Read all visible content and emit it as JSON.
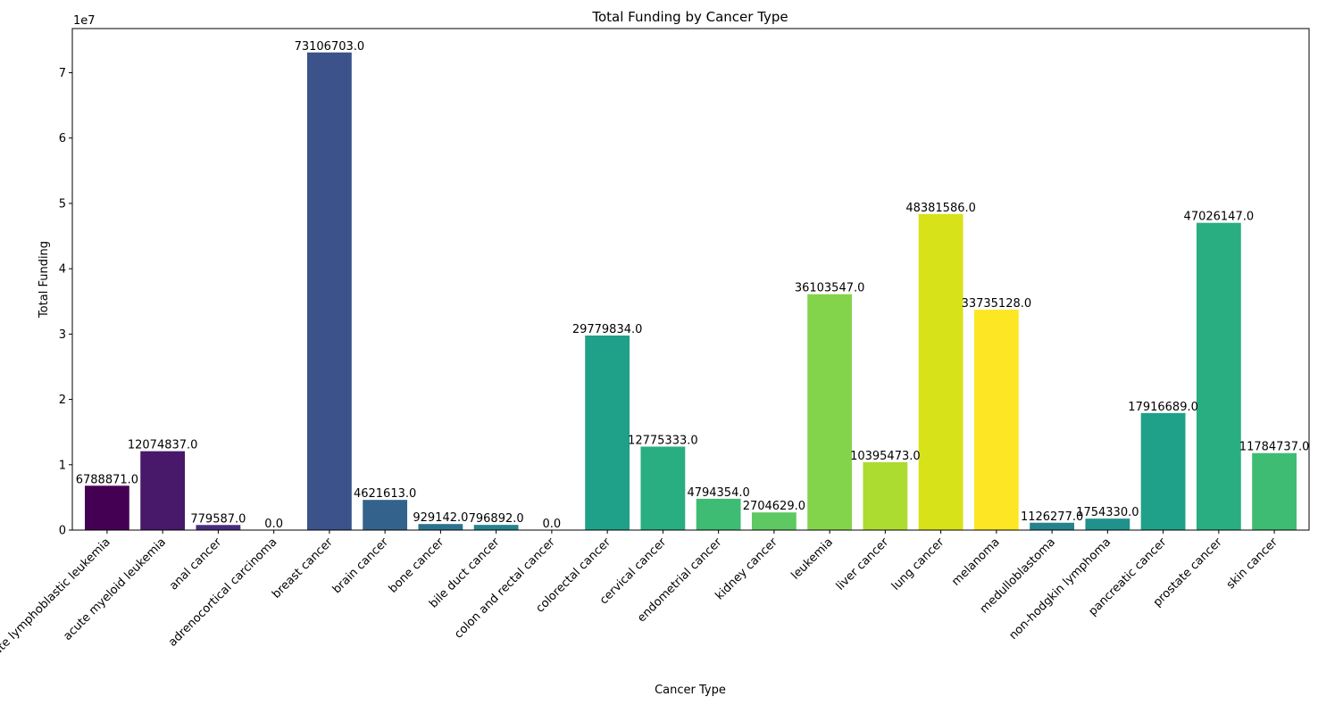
{
  "chart_data": {
    "type": "bar",
    "title": "Total Funding by Cancer Type",
    "xlabel": "Cancer Type",
    "ylabel": "Total Funding",
    "y_multiplier_label": "1e7",
    "ylim": [
      0,
      76761038
    ],
    "yticks": [
      0,
      10000000,
      20000000,
      30000000,
      40000000,
      50000000,
      60000000,
      70000000
    ],
    "ytick_labels": [
      "0",
      "1",
      "2",
      "3",
      "4",
      "5",
      "6",
      "7"
    ],
    "grid": false,
    "colormap": "viridis",
    "categories": [
      "acute lymphoblastic leukemia",
      "acute myeloid leukemia",
      "anal cancer",
      "adrenocortical carcinoma",
      "breast cancer",
      "brain cancer",
      "bone cancer",
      "bile duct cancer",
      "colon and rectal cancer",
      "colorectal cancer",
      "cervical cancer",
      "endometrial cancer",
      "kidney cancer",
      "leukemia",
      "liver cancer",
      "lung cancer",
      "melanoma",
      "medulloblastoma",
      "non-hodgkin lymphoma",
      "pancreatic cancer",
      "prostate cancer",
      "skin cancer"
    ],
    "values": [
      6788871,
      12074837,
      779587,
      0,
      73106703,
      4621613,
      929142,
      796892,
      0,
      29779834,
      12775333,
      4794354,
      2704629,
      36103547,
      10395473,
      48381586,
      33735128,
      1126277,
      1754330,
      17916689,
      47026147,
      11784737
    ],
    "value_labels": [
      "6788871.0",
      "12074837.0",
      "779587.0",
      "0.0",
      "73106703.0",
      "4621613.0",
      "929142.0",
      "796892.0",
      "0.0",
      "29779834.0",
      "12775333.0",
      "4794354.0",
      "2704629.0",
      "36103547.0",
      "10395473.0",
      "48381586.0",
      "33735128.0",
      "1126277.0",
      "1754330.0",
      "17916689.0",
      "47026147.0",
      "11784737.0"
    ],
    "colors": [
      "#440154",
      "#48186a",
      "#472d7b",
      "#424086",
      "#3b528b",
      "#33638d",
      "#2c728e",
      "#26828e",
      "#21918c",
      "#1fa088",
      "#28ae80",
      "#3fbc73",
      "#5ec962",
      "#84d44b",
      "#addc30",
      "#d8e219",
      "#fde725",
      "#26828e",
      "#21918c",
      "#1fa088",
      "#28ae80",
      "#3fbc73"
    ]
  }
}
